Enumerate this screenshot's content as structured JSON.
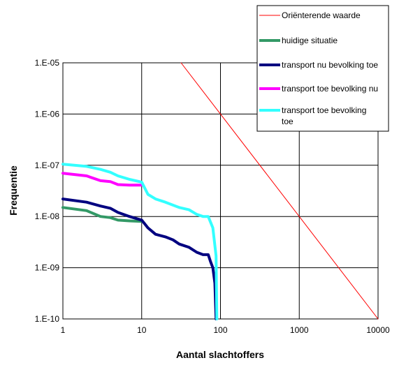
{
  "chart_data": {
    "type": "line",
    "title": "",
    "xlabel": "Aantal slachtoffers",
    "ylabel": "Frequentie",
    "x_scale": "log",
    "y_scale": "log",
    "xlim": [
      1,
      10000
    ],
    "ylim": [
      1e-10,
      1e-05
    ],
    "x_ticks": [
      {
        "value": 1,
        "label": "1"
      },
      {
        "value": 10,
        "label": "10"
      },
      {
        "value": 100,
        "label": "100"
      },
      {
        "value": 1000,
        "label": "1000"
      },
      {
        "value": 10000,
        "label": "10000"
      }
    ],
    "y_ticks": [
      {
        "value": 1e-10,
        "label": "1.E-10"
      },
      {
        "value": 1e-09,
        "label": "1.E-09"
      },
      {
        "value": 1e-08,
        "label": "1.E-08"
      },
      {
        "value": 1e-07,
        "label": "1.E-07"
      },
      {
        "value": 1e-06,
        "label": "1.E-06"
      },
      {
        "value": 1e-05,
        "label": "1.E-05"
      }
    ],
    "grid": true,
    "legend_position": "top-right",
    "series": [
      {
        "name": "Oriënterende waarde",
        "color": "#ff0000",
        "points": [
          [
            31.6,
            1e-05
          ],
          [
            10000,
            1e-10
          ]
        ]
      },
      {
        "name": "huidige situatie",
        "color": "#339966",
        "points": [
          [
            1,
            1.5e-08
          ],
          [
            2,
            1.3e-08
          ],
          [
            3,
            1e-08
          ],
          [
            4,
            9.5e-09
          ],
          [
            5,
            8.5e-09
          ],
          [
            7,
            8.2e-09
          ],
          [
            10,
            8e-09
          ]
        ]
      },
      {
        "name": "transport nu bevolking toe",
        "color": "#000080",
        "points": [
          [
            1,
            2.2e-08
          ],
          [
            2,
            1.9e-08
          ],
          [
            3,
            1.6e-08
          ],
          [
            4,
            1.45e-08
          ],
          [
            5,
            1.2e-08
          ],
          [
            7,
            1e-08
          ],
          [
            10,
            8.5e-09
          ],
          [
            12,
            6e-09
          ],
          [
            15,
            4.5e-09
          ],
          [
            20,
            4e-09
          ],
          [
            25,
            3.5e-09
          ],
          [
            30,
            2.9e-09
          ],
          [
            40,
            2.5e-09
          ],
          [
            50,
            2e-09
          ],
          [
            60,
            1.8e-09
          ],
          [
            70,
            1.8e-09
          ],
          [
            75,
            1.3e-09
          ],
          [
            80,
            1e-09
          ],
          [
            85,
            5e-10
          ],
          [
            88,
            1e-10
          ]
        ]
      },
      {
        "name": "transport toe bevolking nu",
        "color": "#ff00ff",
        "points": [
          [
            1,
            7e-08
          ],
          [
            2,
            6.2e-08
          ],
          [
            3,
            5e-08
          ],
          [
            4,
            4.8e-08
          ],
          [
            5,
            4.2e-08
          ],
          [
            7,
            4.1e-08
          ],
          [
            10,
            4.1e-08
          ]
        ]
      },
      {
        "name": "transport toe bevolking toe",
        "color": "#33ffff",
        "points": [
          [
            1,
            1.05e-07
          ],
          [
            2,
            9.5e-08
          ],
          [
            3,
            8.3e-08
          ],
          [
            4,
            7.3e-08
          ],
          [
            5,
            6.2e-08
          ],
          [
            7,
            5.3e-08
          ],
          [
            10,
            4.7e-08
          ],
          [
            12,
            2.7e-08
          ],
          [
            15,
            2.2e-08
          ],
          [
            20,
            1.9e-08
          ],
          [
            30,
            1.5e-08
          ],
          [
            40,
            1.35e-08
          ],
          [
            50,
            1.1e-08
          ],
          [
            60,
            1e-08
          ],
          [
            70,
            1e-08
          ],
          [
            80,
            6e-09
          ],
          [
            88,
            1.7e-09
          ],
          [
            90,
            1e-10
          ]
        ]
      }
    ]
  }
}
